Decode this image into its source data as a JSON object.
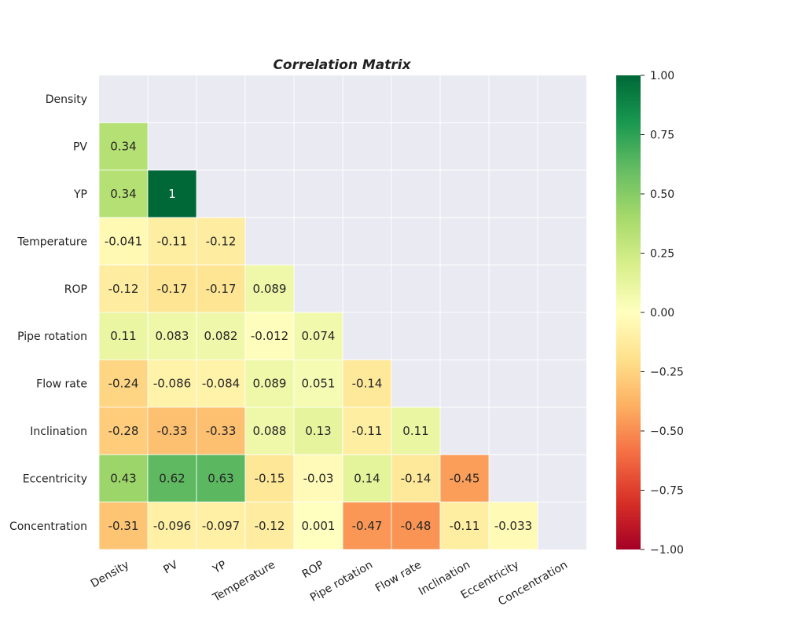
{
  "chart_data": {
    "type": "heatmap",
    "title": "Correlation Matrix",
    "variables": [
      "Density",
      "PV",
      "YP",
      "Temperature",
      "ROP",
      "Pipe rotation",
      "Flow rate",
      "Inclination",
      "Eccentricity",
      "Concentration"
    ],
    "mask": "upper-triangle-including-diagonal",
    "cells": [
      {
        "row": "PV",
        "col": "Density",
        "value": 0.34,
        "label": "0.34"
      },
      {
        "row": "YP",
        "col": "Density",
        "value": 0.34,
        "label": "0.34"
      },
      {
        "row": "YP",
        "col": "PV",
        "value": 1.0,
        "label": "1"
      },
      {
        "row": "Temperature",
        "col": "Density",
        "value": -0.041,
        "label": "-0.041"
      },
      {
        "row": "Temperature",
        "col": "PV",
        "value": -0.11,
        "label": "-0.11"
      },
      {
        "row": "Temperature",
        "col": "YP",
        "value": -0.12,
        "label": "-0.12"
      },
      {
        "row": "ROP",
        "col": "Density",
        "value": -0.12,
        "label": "-0.12"
      },
      {
        "row": "ROP",
        "col": "PV",
        "value": -0.17,
        "label": "-0.17"
      },
      {
        "row": "ROP",
        "col": "YP",
        "value": -0.17,
        "label": "-0.17"
      },
      {
        "row": "ROP",
        "col": "Temperature",
        "value": 0.089,
        "label": "0.089"
      },
      {
        "row": "Pipe rotation",
        "col": "Density",
        "value": 0.11,
        "label": "0.11"
      },
      {
        "row": "Pipe rotation",
        "col": "PV",
        "value": 0.083,
        "label": "0.083"
      },
      {
        "row": "Pipe rotation",
        "col": "YP",
        "value": 0.082,
        "label": "0.082"
      },
      {
        "row": "Pipe rotation",
        "col": "Temperature",
        "value": -0.012,
        "label": "-0.012"
      },
      {
        "row": "Pipe rotation",
        "col": "ROP",
        "value": 0.074,
        "label": "0.074"
      },
      {
        "row": "Flow rate",
        "col": "Density",
        "value": -0.24,
        "label": "-0.24"
      },
      {
        "row": "Flow rate",
        "col": "PV",
        "value": -0.086,
        "label": "-0.086"
      },
      {
        "row": "Flow rate",
        "col": "YP",
        "value": -0.084,
        "label": "-0.084"
      },
      {
        "row": "Flow rate",
        "col": "Temperature",
        "value": 0.089,
        "label": "0.089"
      },
      {
        "row": "Flow rate",
        "col": "ROP",
        "value": 0.051,
        "label": "0.051"
      },
      {
        "row": "Flow rate",
        "col": "Pipe rotation",
        "value": -0.14,
        "label": "-0.14"
      },
      {
        "row": "Inclination",
        "col": "Density",
        "value": -0.28,
        "label": "-0.28"
      },
      {
        "row": "Inclination",
        "col": "PV",
        "value": -0.33,
        "label": "-0.33"
      },
      {
        "row": "Inclination",
        "col": "YP",
        "value": -0.33,
        "label": "-0.33"
      },
      {
        "row": "Inclination",
        "col": "Temperature",
        "value": 0.088,
        "label": "0.088"
      },
      {
        "row": "Inclination",
        "col": "ROP",
        "value": 0.13,
        "label": "0.13"
      },
      {
        "row": "Inclination",
        "col": "Pipe rotation",
        "value": -0.11,
        "label": "-0.11"
      },
      {
        "row": "Inclination",
        "col": "Flow rate",
        "value": 0.11,
        "label": "0.11"
      },
      {
        "row": "Eccentricity",
        "col": "Density",
        "value": 0.43,
        "label": "0.43"
      },
      {
        "row": "Eccentricity",
        "col": "PV",
        "value": 0.62,
        "label": "0.62"
      },
      {
        "row": "Eccentricity",
        "col": "YP",
        "value": 0.63,
        "label": "0.63"
      },
      {
        "row": "Eccentricity",
        "col": "Temperature",
        "value": -0.15,
        "label": "-0.15"
      },
      {
        "row": "Eccentricity",
        "col": "ROP",
        "value": -0.03,
        "label": "-0.03"
      },
      {
        "row": "Eccentricity",
        "col": "Pipe rotation",
        "value": 0.14,
        "label": "0.14"
      },
      {
        "row": "Eccentricity",
        "col": "Flow rate",
        "value": -0.14,
        "label": "-0.14"
      },
      {
        "row": "Eccentricity",
        "col": "Inclination",
        "value": -0.45,
        "label": "-0.45"
      },
      {
        "row": "Concentration",
        "col": "Density",
        "value": -0.31,
        "label": "-0.31"
      },
      {
        "row": "Concentration",
        "col": "PV",
        "value": -0.096,
        "label": "-0.096"
      },
      {
        "row": "Concentration",
        "col": "YP",
        "value": -0.097,
        "label": "-0.097"
      },
      {
        "row": "Concentration",
        "col": "Temperature",
        "value": -0.12,
        "label": "-0.12"
      },
      {
        "row": "Concentration",
        "col": "ROP",
        "value": 0.001,
        "label": "0.001"
      },
      {
        "row": "Concentration",
        "col": "Pipe rotation",
        "value": -0.47,
        "label": "-0.47"
      },
      {
        "row": "Concentration",
        "col": "Flow rate",
        "value": -0.48,
        "label": "-0.48"
      },
      {
        "row": "Concentration",
        "col": "Inclination",
        "value": -0.11,
        "label": "-0.11"
      },
      {
        "row": "Concentration",
        "col": "Eccentricity",
        "value": -0.033,
        "label": "-0.033"
      }
    ],
    "colorbar": {
      "colormap": "RdYlGn",
      "range": [
        -1.0,
        1.0
      ],
      "ticks": [
        1.0,
        0.75,
        0.5,
        0.25,
        0.0,
        -0.25,
        -0.5,
        -0.75,
        -1.0
      ],
      "tick_labels": [
        "1.00",
        "0.75",
        "0.50",
        "0.25",
        "0.00",
        "−0.25",
        "−0.50",
        "−0.75",
        "−1.00"
      ]
    },
    "grid": true,
    "colors": {
      "background": "#eaeaf2",
      "gridline": "#ffffff",
      "text_dark": "#262626",
      "text_light": "#ffffff"
    }
  }
}
